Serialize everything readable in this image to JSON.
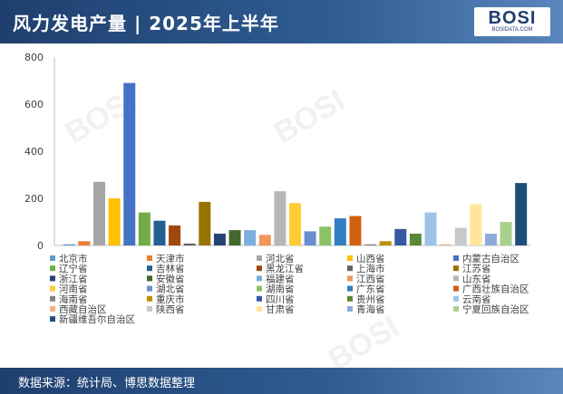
{
  "header": {
    "title": "风力发电产量 | 2025年上半年",
    "logo_main": "BOSI",
    "logo_sub": "BOSIDATA.COM"
  },
  "footer": {
    "source": "数据来源：统计局、博思数据整理"
  },
  "watermark": "BOSI",
  "chart_data": {
    "type": "bar",
    "title": "",
    "xlabel": "",
    "ylabel": "",
    "ylim": [
      0,
      800
    ],
    "yticks": [
      0,
      200,
      400,
      600,
      800
    ],
    "grid": false,
    "legend_position": "bottom",
    "categories": [
      "北京市",
      "天津市",
      "河北省",
      "山西省",
      "内蒙古自治区",
      "辽宁省",
      "吉林省",
      "黑龙江省",
      "上海市",
      "江苏省",
      "浙江省",
      "安徽省",
      "福建省",
      "江西省",
      "山东省",
      "河南省",
      "湖北省",
      "湖南省",
      "广东省",
      "广西壮族自治区",
      "海南省",
      "重庆市",
      "四川省",
      "贵州省",
      "云南省",
      "西藏自治区",
      "陕西省",
      "甘肃省",
      "青海省",
      "宁夏回族自治区",
      "新疆维吾尔自治区"
    ],
    "colors": [
      "#5b9bd5",
      "#ed7d31",
      "#a5a5a5",
      "#ffc000",
      "#4472c4",
      "#70ad47",
      "#255e91",
      "#9e480e",
      "#636363",
      "#997300",
      "#264478",
      "#43682b",
      "#7cafdd",
      "#f1975a",
      "#b7b7b7",
      "#ffcd33",
      "#698ed0",
      "#8cc168",
      "#327dc2",
      "#d26012",
      "#848484",
      "#c09200",
      "#335aa1",
      "#5a8a39",
      "#9dc3e6",
      "#f4b183",
      "#c9c9c9",
      "#ffe699",
      "#8faadc",
      "#a9d18e",
      "#1f4e79"
    ],
    "series": [
      {
        "values": [
          5,
          18,
          270,
          200,
          690,
          140,
          105,
          85,
          8,
          185,
          50,
          65,
          65,
          45,
          230,
          180,
          60,
          80,
          115,
          125,
          5,
          18,
          70,
          50,
          140,
          5,
          75,
          175,
          50,
          100,
          265
        ]
      }
    ]
  }
}
